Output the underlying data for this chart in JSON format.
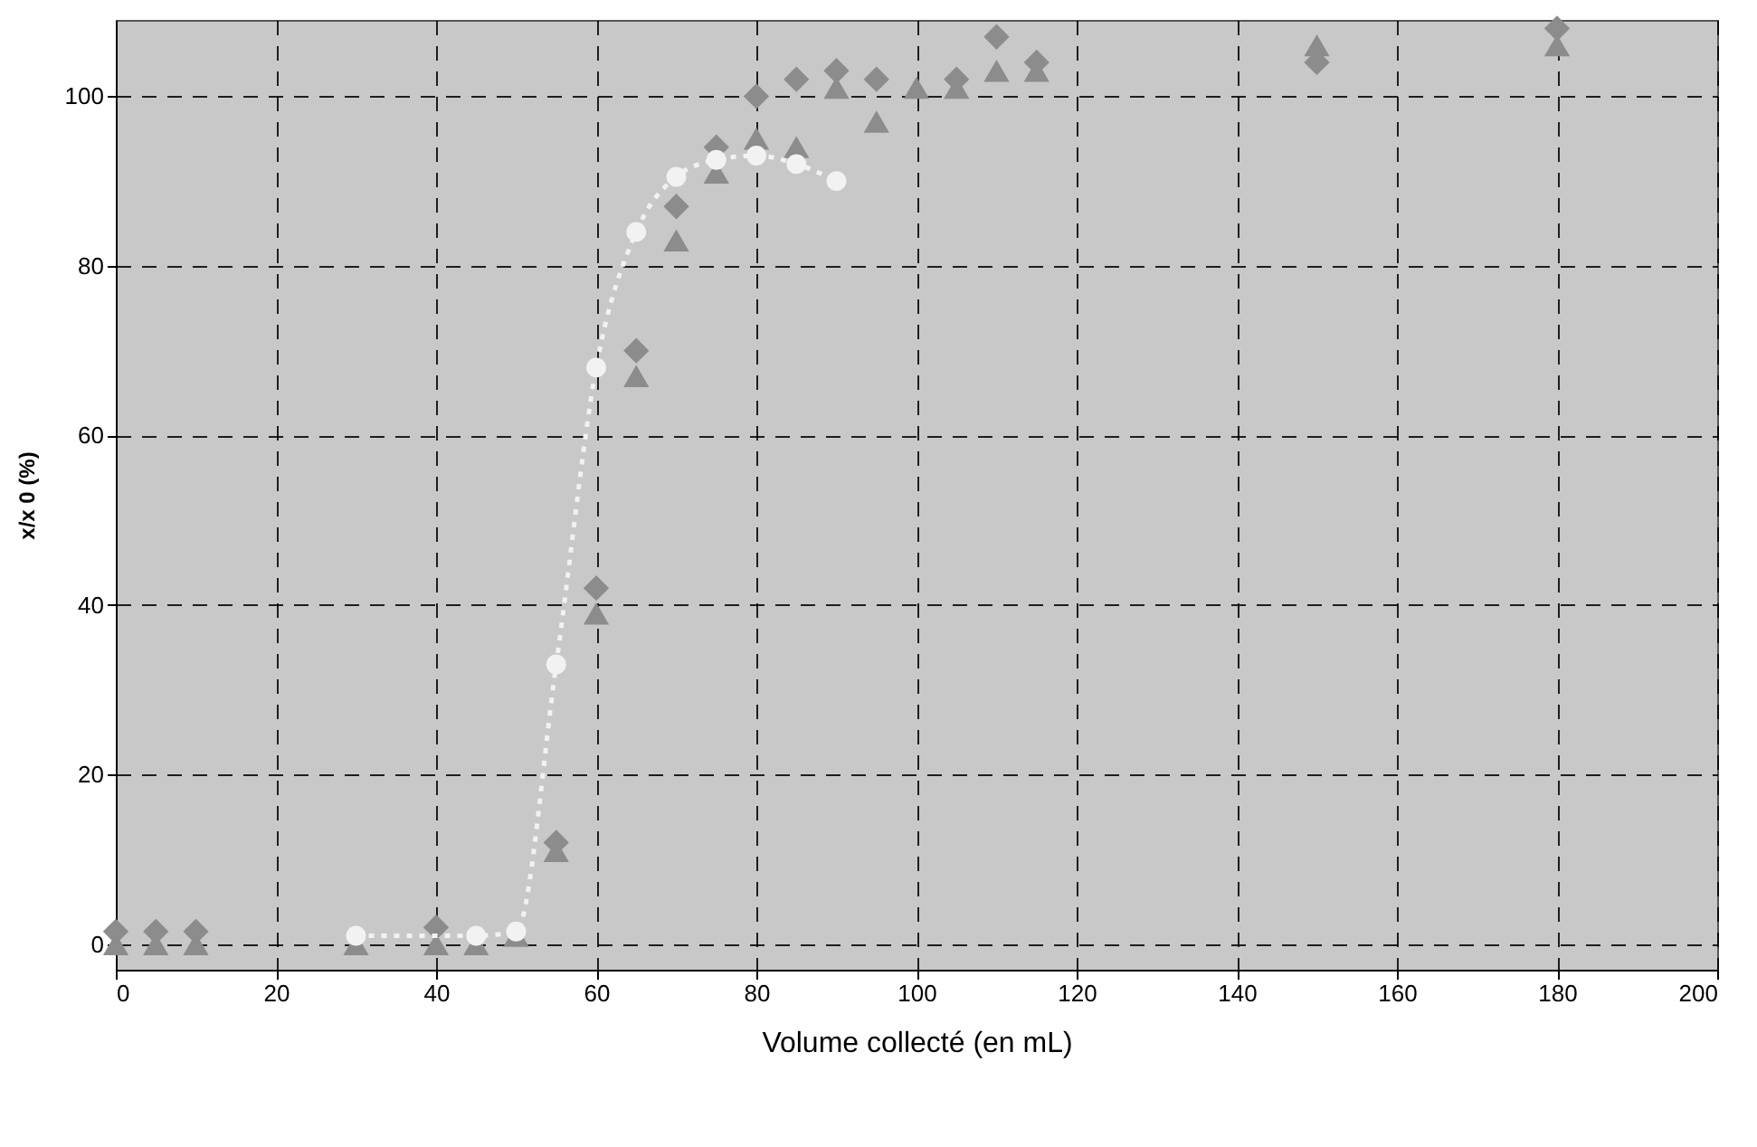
{
  "chart_data": {
    "type": "scatter",
    "xlabel": "Volume collecté (en mL)",
    "ylabel": "x/x 0 (%)",
    "xlim": [
      0,
      200
    ],
    "ylim": [
      -3,
      109
    ],
    "xticks": [
      0,
      20,
      40,
      60,
      80,
      100,
      120,
      140,
      160,
      180,
      200
    ],
    "yticks": [
      0,
      20,
      40,
      60,
      80,
      100
    ],
    "grid": true,
    "series": [
      {
        "marker": "diamond",
        "color": "#8c8c8c",
        "x": [
          0,
          5,
          10,
          30,
          40,
          55,
          60,
          65,
          70,
          75,
          80,
          85,
          90,
          95,
          100,
          105,
          110,
          115,
          150,
          180
        ],
        "values": [
          1.5,
          1.5,
          1.5,
          null,
          2,
          12,
          42,
          70,
          87,
          94,
          100,
          102,
          103,
          102,
          null,
          102,
          107,
          104,
          104,
          108
        ]
      },
      {
        "marker": "triangle",
        "color": "#8c8c8c",
        "x": [
          0,
          5,
          10,
          30,
          40,
          45,
          50,
          55,
          60,
          65,
          70,
          75,
          80,
          85,
          90,
          95,
          100,
          105,
          110,
          115,
          150,
          180
        ],
        "values": [
          0,
          0,
          0,
          0,
          0,
          0,
          1,
          11,
          39,
          67,
          83,
          91,
          95,
          94,
          101,
          97,
          101,
          101,
          103,
          103,
          106,
          106
        ]
      },
      {
        "type": "line",
        "marker": "circle",
        "line_style": "dotted",
        "color": "#f2f2f2",
        "x": [
          30,
          45,
          50,
          55,
          60,
          65,
          70,
          75,
          80,
          85,
          90
        ],
        "values": [
          1,
          1,
          1.5,
          33,
          68,
          84,
          90.5,
          92.5,
          93,
          92,
          90
        ]
      }
    ]
  }
}
